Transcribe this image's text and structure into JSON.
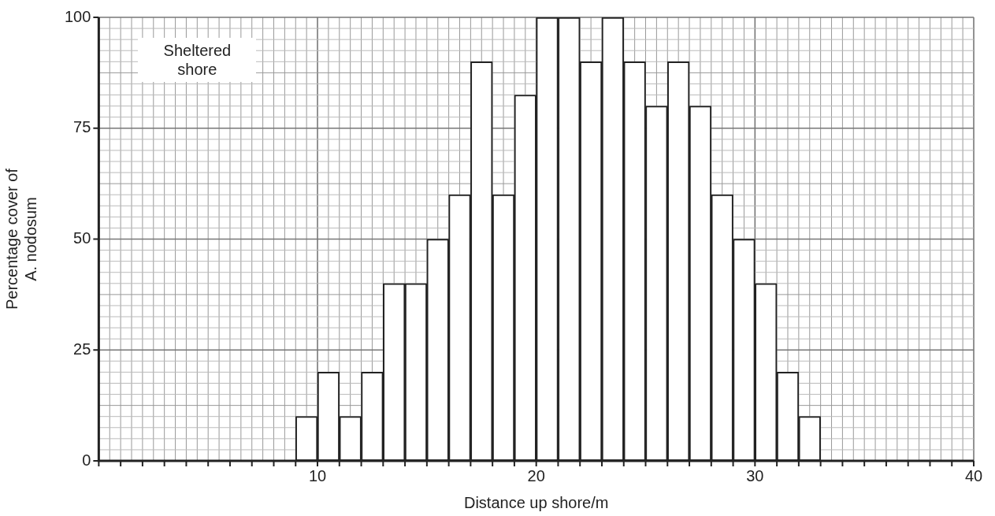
{
  "chart_data": {
    "type": "bar",
    "xlabel": "Distance up shore/m",
    "ylabel": "Percentage cover of A. nodosum",
    "x": [
      9.5,
      10.5,
      11.5,
      12.5,
      13.5,
      14.5,
      15.5,
      16.5,
      17.5,
      18.5,
      19.5,
      20.5,
      21.5,
      22.5,
      23.5,
      24.5,
      25.5,
      26.5,
      27.5,
      28.5,
      29.5,
      30.5,
      31.5,
      32.5
    ],
    "values": [
      10,
      20,
      10,
      20,
      40,
      40,
      50,
      60,
      90,
      60,
      82.5,
      100,
      100,
      90,
      100,
      90,
      80,
      90,
      80,
      60,
      50,
      40,
      20,
      10
    ],
    "color": "#ffffff",
    "xlim": [
      0,
      40
    ],
    "xticks": [
      {
        "value": 0,
        "label": null
      },
      {
        "value": 1,
        "label": null
      },
      {
        "value": 2,
        "label": null
      },
      {
        "value": 3,
        "label": null
      },
      {
        "value": 4,
        "label": null
      },
      {
        "value": 5,
        "label": null
      },
      {
        "value": 6,
        "label": null
      },
      {
        "value": 7,
        "label": null
      },
      {
        "value": 8,
        "label": null
      },
      {
        "value": 9,
        "label": null
      },
      10,
      {
        "value": 11,
        "label": null
      },
      {
        "value": 12,
        "label": null
      },
      {
        "value": 13,
        "label": null
      },
      {
        "value": 14,
        "label": null
      },
      {
        "value": 15,
        "label": null
      },
      {
        "value": 16,
        "label": null
      },
      {
        "value": 17,
        "label": null
      },
      {
        "value": 18,
        "label": null
      },
      {
        "value": 19,
        "label": null
      },
      20,
      {
        "value": 21,
        "label": null
      },
      {
        "value": 22,
        "label": null
      },
      {
        "value": 23,
        "label": null
      },
      {
        "value": 24,
        "label": null
      },
      {
        "value": 25,
        "label": null
      },
      {
        "value": 26,
        "label": null
      },
      {
        "value": 27,
        "label": null
      },
      {
        "value": 28,
        "label": null
      },
      {
        "value": 29,
        "label": null
      },
      30,
      {
        "value": 31,
        "label": null
      },
      {
        "value": 32,
        "label": null
      },
      {
        "value": 33,
        "label": null
      },
      {
        "value": 34,
        "label": null
      },
      {
        "value": 35,
        "label": null
      },
      {
        "value": 36,
        "label": null
      },
      {
        "value": 37,
        "label": null
      },
      {
        "value": 38,
        "label": null
      },
      {
        "value": 39,
        "label": null
      },
      40
    ],
    "ylim": [
      0,
      100
    ],
    "yticks": [
      0,
      25,
      50,
      75,
      100
    ],
    "grid": true,
    "annotations": [
      "Sheltered shore"
    ]
  }
}
